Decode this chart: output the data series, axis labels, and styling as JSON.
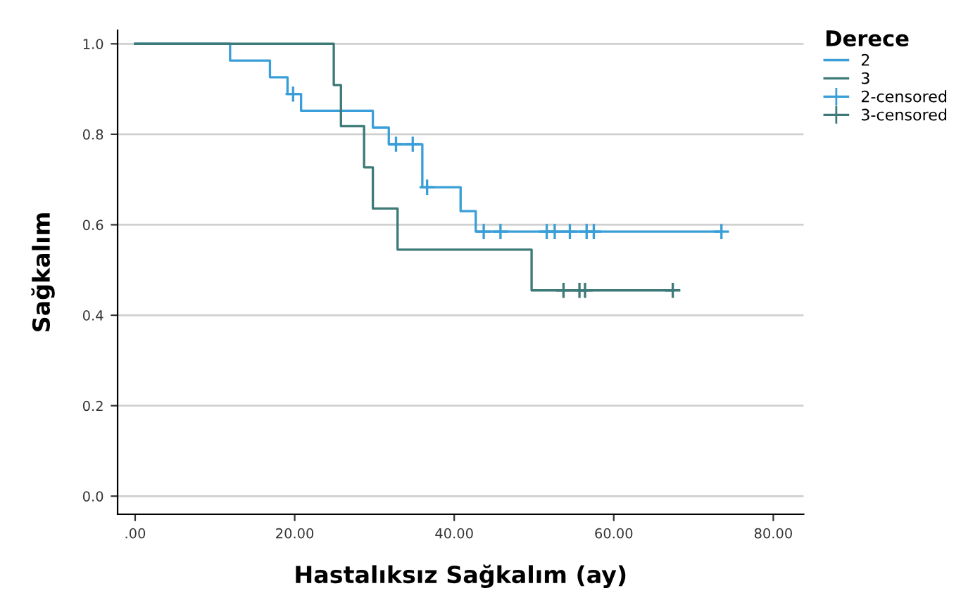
{
  "chart_data": {
    "type": "step",
    "xlabel": "Hastalıksız Sağkalım (ay)",
    "ylabel": "Sağkalım",
    "legend_title": "Derece",
    "legend": "right",
    "grid": "y",
    "xlim": [
      -2.2,
      83.8
    ],
    "ylim": [
      -0.04,
      1.03
    ],
    "xticks": [
      {
        "value": 0,
        "label": ".00"
      },
      {
        "value": 20,
        "label": "20.00"
      },
      {
        "value": 40,
        "label": "40.00"
      },
      {
        "value": 60,
        "label": "60.00"
      },
      {
        "value": 80,
        "label": "80.00"
      }
    ],
    "yticks": [
      {
        "value": 0,
        "label": "0.0"
      },
      {
        "value": 0.2,
        "label": "0.2"
      },
      {
        "value": 0.4,
        "label": "0.4"
      },
      {
        "value": 0.6,
        "label": "0.6"
      },
      {
        "value": 0.8,
        "label": "0.8"
      },
      {
        "value": 1.0,
        "label": "1.0"
      }
    ],
    "series": [
      {
        "name": "2",
        "color": "#3a9fd8",
        "x": [
          0,
          11.9,
          16.9,
          19.1,
          20.8,
          29.8,
          31.8,
          36.0,
          40.8,
          42.7,
          73.5
        ],
        "values": [
          1.0,
          0.963,
          0.926,
          0.889,
          0.852,
          0.815,
          0.778,
          0.683,
          0.63,
          0.585,
          0.585
        ]
      },
      {
        "name": "3",
        "color": "#3d7a78",
        "x": [
          0,
          24.9,
          25.8,
          28.7,
          29.8,
          32.9,
          49.7,
          67.4
        ],
        "values": [
          1.0,
          0.909,
          0.818,
          0.727,
          0.636,
          0.545,
          0.455,
          0.455
        ]
      },
      {
        "name": "2-censored",
        "type": "scatter",
        "marker": "cross",
        "color": "#3a9fd8",
        "x": [
          19.8,
          32.7,
          34.8,
          36.6,
          43.7,
          45.8,
          51.6,
          52.6,
          54.5,
          56.6,
          57.5,
          73.5
        ],
        "values": [
          0.889,
          0.778,
          0.778,
          0.683,
          0.585,
          0.585,
          0.585,
          0.585,
          0.585,
          0.585,
          0.585,
          0.585
        ]
      },
      {
        "name": "3-censored",
        "type": "scatter",
        "marker": "cross",
        "color": "#3d7a78",
        "x": [
          53.7,
          55.7,
          56.4,
          67.4
        ],
        "values": [
          0.455,
          0.455,
          0.455,
          0.455
        ]
      }
    ]
  }
}
